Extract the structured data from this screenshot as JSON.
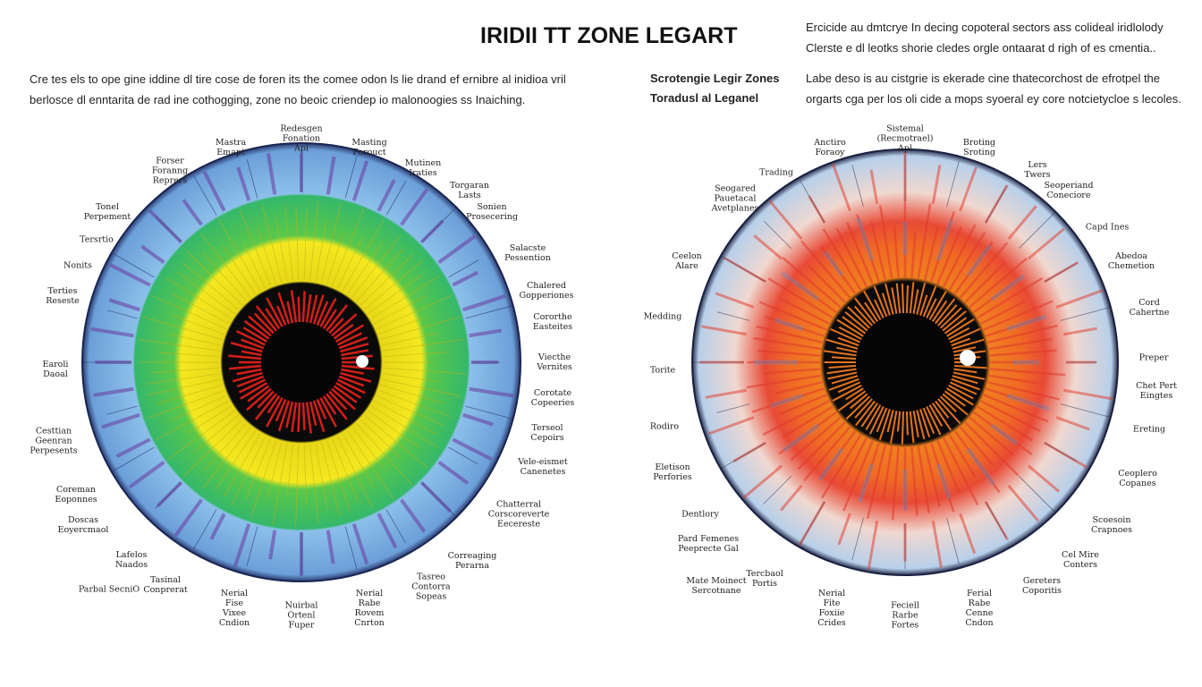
{
  "title": "IRIDII TT ZONE LEGART",
  "intro_left": [
    "Cre tes els to ope gine iddine dl tire cose de foren its the comee odon ls lie drand ef ernibre al inidioa vril",
    "berlosce dl enntarita de rad ine cothogging, zone no beoic criendep io malonoogies ss Inaiching."
  ],
  "intro_right": [
    "Ercicide au dmtcrye In decing copoteral sectors ass colideal iridlolody",
    "Clerste e dl leotks shorie cledes orgle ontaarat d righ of es cmentia.."
  ],
  "subtitle": [
    "Scrotengie Legir Zones",
    "Toradusl al Leganel"
  ],
  "subtitle_desc": [
    "Labe deso is au cistgrie is ekerade cine thatecorchost de efrotpel the",
    "orgarts cga per los oli cide a mops syoeral ey core notcietycloe s lecoles."
  ],
  "colors": {
    "left_outer": "#7fb0e0",
    "left_purple": "#6a3aa0",
    "left_green": "#3fbf5a",
    "left_yellow": "#f2e21a",
    "left_red": "#e0201a",
    "right_outer": "#cfe0f0",
    "right_red": "#e03a2a",
    "right_orange": "#f07a20",
    "pupil": "#0a0a0a"
  },
  "left_labels": [
    "Redesgen\nFonation\nApl",
    "Mastra\nEmapt",
    "Masting\nPorouct",
    "Mutinen\nIraties",
    "Forser\nForanng\nReprers",
    "Torgaran\nLasts",
    "Tonel\nPerpement",
    "Sonien\nProsecering",
    "Tersrtio",
    "Salacste\nPessention",
    "Nonits",
    "Terties\nReseste",
    "Chalered\nGopperiones",
    "Cororthe\nEasteites",
    "Earoli\nDaoal",
    "Viecthe\nVernites",
    "Corotate\nCopeeries",
    "Terseol\nCepoirs",
    "Cesttian\nGeenran\nPerpesents",
    "Vele-eismet\nCanenetes",
    "Coreman\nEoponnes",
    "Chatterral\nCorscoreverte\nEecereste",
    "Doscas\nEoyercmaol",
    "Lafelos\nNaados",
    "Correaging\nPerarna",
    "Tasinal\nConprerat",
    "Parbal SecniO",
    "Tasreo\nContorra\nSopeas",
    "Nerial\nFise\nVixee\nCndion",
    "Nuirbal\nOrtenl\nFuper",
    "Nerial\nRabe\nRovem\nCnrton"
  ],
  "right_labels": [
    "Sistemal\n(Recmotrael)\nApl",
    "Anctiro\nForaoy",
    "Broting\nSroting",
    "Lers\nTwers",
    "Trading",
    "Seogared\nPauetacal\nAvetplanes",
    "Seoperiand\nConeciore",
    "Capd Ines",
    "Ceelon\nAlare",
    "Abedoa\nChemetion",
    "Medding",
    "Cord\nCahertne",
    "Torite",
    "Preper",
    "Chet Pert\nEingtes",
    "Rodiro",
    "Ereting",
    "Eletison\nPerfories",
    "Ceoplero\nCopanes",
    "Dentlory",
    "Scoesoin\nCrapnoes",
    "Pard Femenes\nPeeprecte Gal",
    "Cel Mire\nConters",
    "Tercbaol\nPortis",
    "Mate Moinect\nSercotnane",
    "Gereters\nCoporitis",
    "Nerial\nFite\nFoxiie\nCrides",
    "Feciell\nRarbe\nFortes",
    "Ferial\nRabe\nCenne\nCndon"
  ]
}
